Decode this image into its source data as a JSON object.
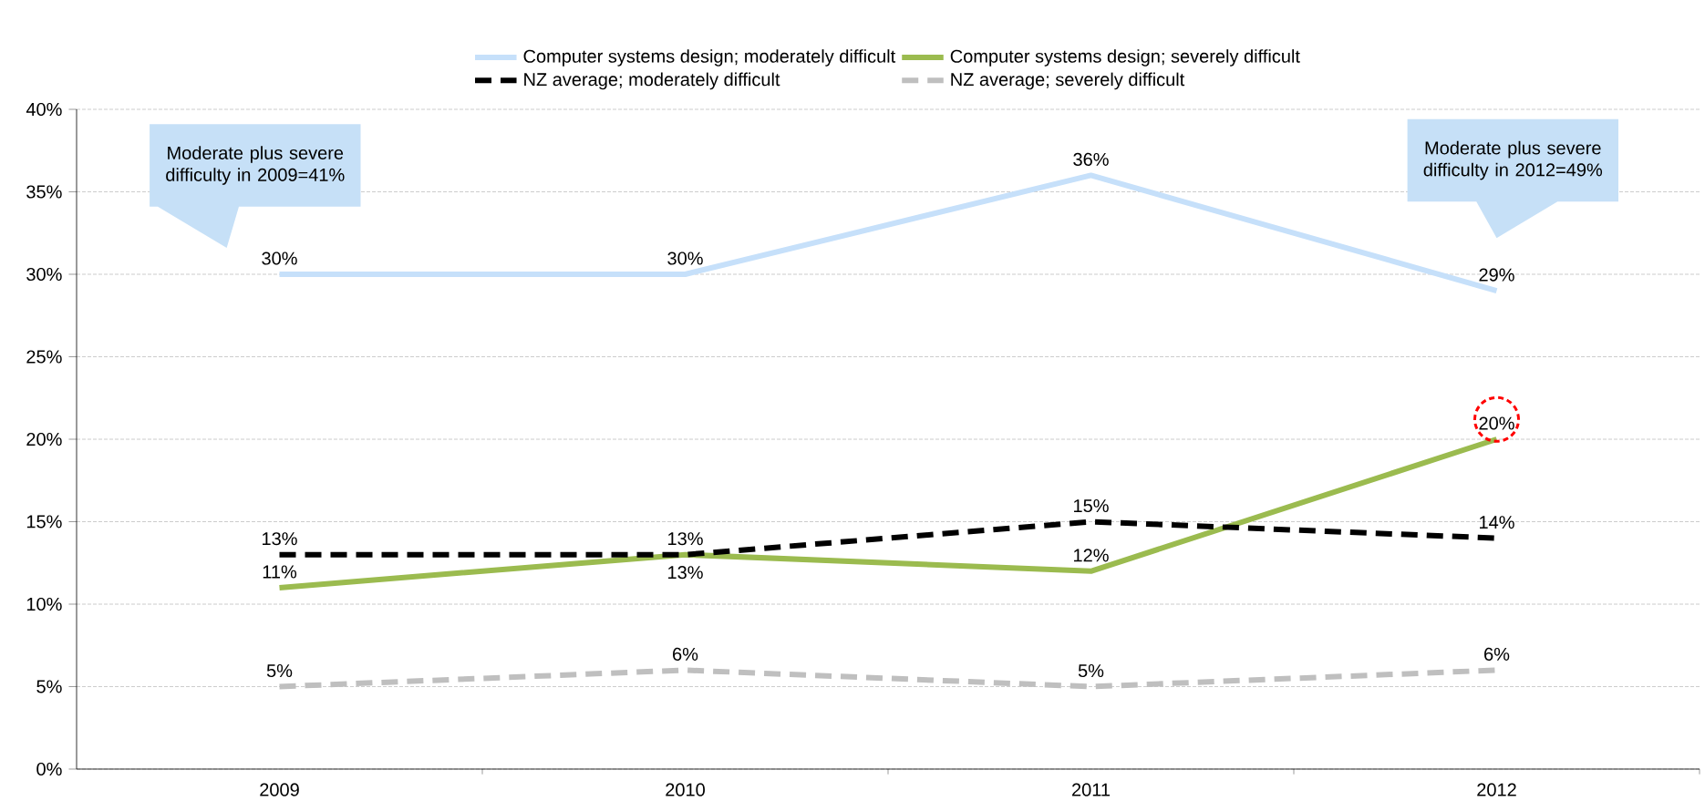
{
  "chart_data": {
    "type": "line",
    "categories": [
      "2009",
      "2010",
      "2011",
      "2012"
    ],
    "series": [
      {
        "name": "Computer systems design; moderately difficult",
        "color": "#c6e0fa",
        "line_style": "solid",
        "values": [
          30,
          30,
          36,
          29
        ],
        "value_labels": [
          "30%",
          "30%",
          "36%",
          "29%"
        ]
      },
      {
        "name": "Computer systems design; severely difficult",
        "color": "#9bbb4f",
        "line_style": "solid",
        "values": [
          11,
          13,
          12,
          20
        ],
        "value_labels": [
          "11%",
          "13%",
          "12%",
          "20%"
        ]
      },
      {
        "name": "NZ average; moderately difficult",
        "color": "#000000",
        "line_style": "dashed",
        "values": [
          13,
          13,
          15,
          14
        ],
        "value_labels": [
          "13%",
          "13%",
          "15%",
          "14%"
        ]
      },
      {
        "name": "NZ average; severely difficult",
        "color": "#bfbfbf",
        "line_style": "dashed",
        "values": [
          5,
          6,
          5,
          6
        ],
        "value_labels": [
          "5%",
          "6%",
          "5%",
          "6%"
        ]
      }
    ],
    "ylim": [
      0,
      40
    ],
    "yticks": [
      {
        "value": 0,
        "label": "0%"
      },
      {
        "value": 5,
        "label": "5%"
      },
      {
        "value": 10,
        "label": "10%"
      },
      {
        "value": 15,
        "label": "15%"
      },
      {
        "value": 20,
        "label": "20%"
      },
      {
        "value": 25,
        "label": "25%"
      },
      {
        "value": 30,
        "label": "30%"
      },
      {
        "value": 35,
        "label": "35%"
      },
      {
        "value": 40,
        "label": "40%"
      }
    ],
    "grid": "y",
    "legend": "top",
    "marker": "none",
    "annotations": [
      "Moderate plus severe difficulty in 2009=41%",
      "Moderate plus severe difficulty in 2012=49%"
    ]
  }
}
